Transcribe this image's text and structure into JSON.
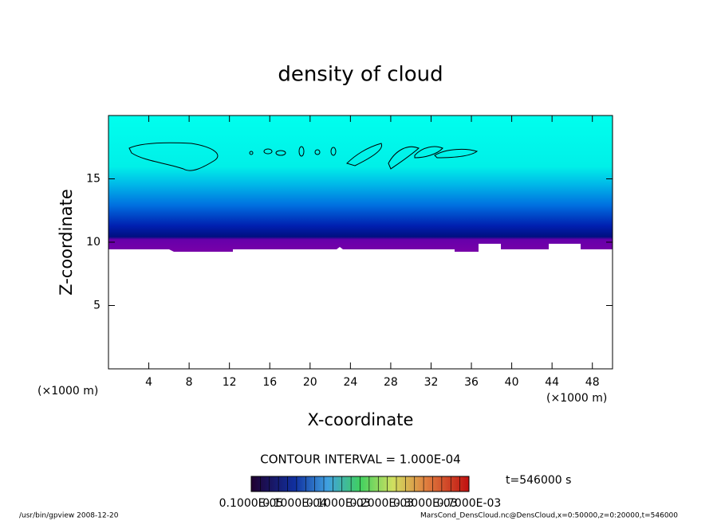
{
  "chart_data": {
    "type": "contour",
    "title": "density of cloud",
    "xlabel": "X-coordinate",
    "ylabel": "Z-coordinate",
    "x_unit": "(×1000 m)",
    "y_unit": "(×1000 m)",
    "xlim": [
      0,
      50
    ],
    "ylim": [
      0,
      20
    ],
    "xticks": [
      4,
      8,
      12,
      16,
      20,
      24,
      28,
      32,
      36,
      40,
      44,
      48
    ],
    "yticks": [
      5,
      10,
      15
    ],
    "contour_interval": "CONTOUR INTERVAL = 1.000E-04",
    "time": "t=546000 s",
    "colorbar_labels": [
      "0.1000E-05",
      "0.1000E-04",
      "0.1000E-03",
      "0.2000E-03",
      "0.3000E-03",
      "0.7000E-03"
    ]
  },
  "footer": {
    "left": "/usr/bin/gpview   2008-12-20",
    "right": "MarsCond_DensCloud.nc@DensCloud,x=0:50000,z=0:20000,t=546000"
  }
}
